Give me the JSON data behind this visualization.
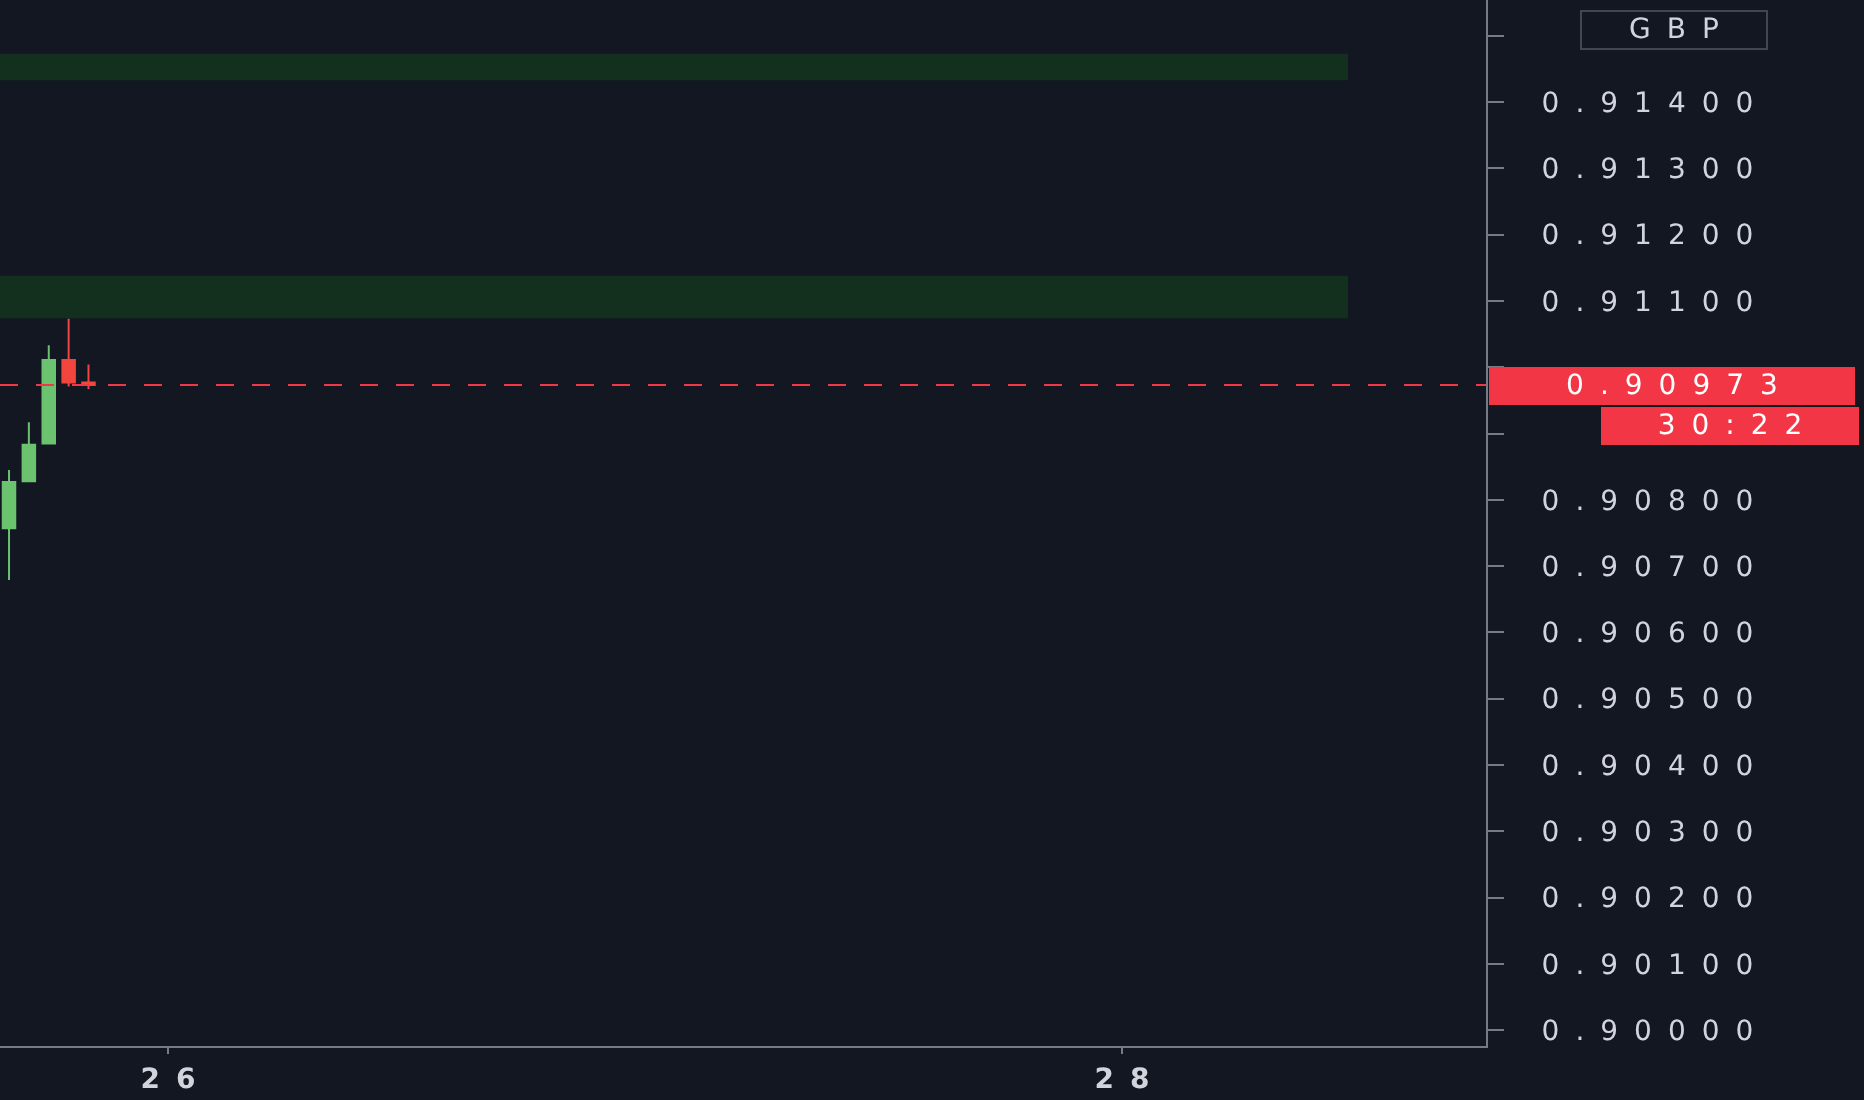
{
  "chart_data": {
    "type": "candlestick",
    "x": [
      25.6667,
      25.7083,
      25.75,
      25.7917,
      25.8333
    ],
    "ohlc": [
      [
        0.90757,
        0.90845,
        0.90679,
        0.90827
      ],
      [
        0.90828,
        0.90917,
        0.90828,
        0.90883
      ],
      [
        0.90885,
        0.91033,
        0.90885,
        0.91011
      ],
      [
        0.91011,
        0.91073,
        0.90971,
        0.90977
      ],
      [
        0.90977,
        0.91004,
        0.90967,
        0.90973
      ]
    ],
    "colors": [
      "#6bc26f",
      "#6bc26f",
      "#6bc26f",
      "#f2453d",
      "#f2453d"
    ],
    "xlim": [
      25.6478,
      28.763
    ],
    "xticks": [
      26,
      28
    ],
    "ylim": [
      0.89976,
      0.91554
    ],
    "yticks": [
      {
        "value": 0.9,
        "label": "0.90000"
      },
      {
        "value": 0.901,
        "label": "0.90100"
      },
      {
        "value": 0.902,
        "label": "0.90200"
      },
      {
        "value": 0.903,
        "label": "0.90300"
      },
      {
        "value": 0.904,
        "label": "0.90400"
      },
      {
        "value": 0.905,
        "label": "0.90500"
      },
      {
        "value": 0.906,
        "label": "0.90600"
      },
      {
        "value": 0.907,
        "label": "0.90700"
      },
      {
        "value": 0.908,
        "label": "0.90800"
      },
      {
        "value": 0.909,
        "label": null
      },
      {
        "value": 0.91,
        "label": null
      },
      {
        "value": 0.911,
        "label": "0.91100"
      },
      {
        "value": 0.912,
        "label": "0.91200"
      },
      {
        "value": 0.913,
        "label": "0.91300"
      },
      {
        "value": 0.914,
        "label": "0.91400"
      },
      {
        "value": 0.915,
        "label": null
      }
    ],
    "bands": [
      {
        "axis": "y",
        "from": 0.91074,
        "to": 0.91138,
        "color": "#13301f"
      },
      {
        "axis": "y",
        "from": 0.91433,
        "to": 0.91473,
        "color": "#13301f"
      }
    ],
    "ref_lines": [
      {
        "axis": "y",
        "value": 0.90973,
        "label": "0.90973",
        "color": "#f23645",
        "line_style": "dashed"
      }
    ],
    "annotations": [
      "GBP",
      "30:22"
    ]
  }
}
